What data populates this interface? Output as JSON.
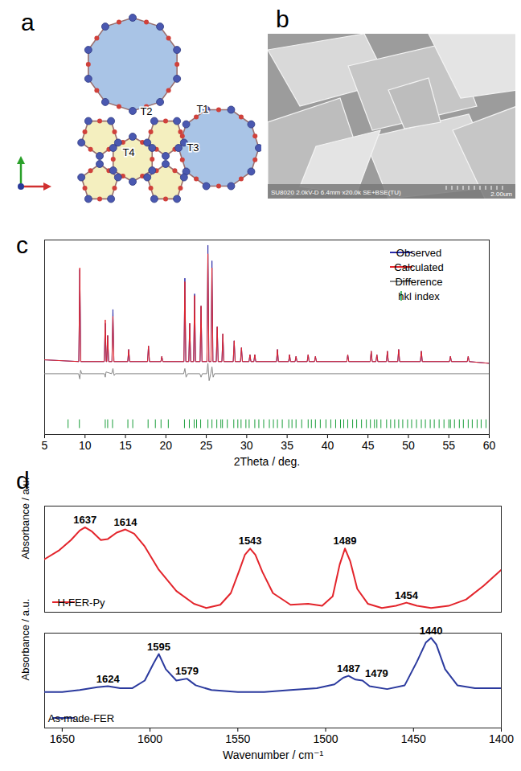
{
  "diagram": {
    "panel": "a",
    "labels": [
      "T2",
      "T1",
      "T3",
      "T4"
    ]
  },
  "image": {
    "panel": "b",
    "info": "SU8020 2.0kV-D 6.4mm x20.0k SE+BSE(TU)",
    "scale_bar": "2.00um"
  },
  "chart_data": [
    {
      "panel": "c",
      "type": "line",
      "x_label": "2Theta / deg.",
      "xlim": [
        5,
        60
      ],
      "xticks": [
        5,
        10,
        15,
        20,
        25,
        30,
        35,
        40,
        45,
        50,
        55,
        60
      ],
      "ylim": [
        0,
        112
      ],
      "tick_labels": "x",
      "legend": "top-right",
      "series": [
        {
          "name": "Observed",
          "color": "#2a2aa8",
          "x": [
            5,
            9.23,
            9.35,
            9.47,
            12.38,
            12.5,
            12.62,
            12.68,
            12.8,
            12.92,
            13.33,
            13.45,
            13.57,
            15.28,
            15.4,
            15.52,
            17.73,
            17.85,
            17.97,
            19.38,
            19.5,
            19.62,
            22.23,
            22.35,
            22.47,
            22.83,
            22.95,
            23.07,
            23.43,
            23.55,
            23.67,
            24.23,
            24.35,
            24.47,
            25.08,
            25.2,
            25.32,
            25.58,
            25.7,
            25.82,
            26.23,
            26.35,
            26.47,
            26.93,
            27.05,
            27.17,
            28.33,
            28.45,
            28.57,
            29.23,
            29.35,
            29.47,
            30.28,
            30.4,
            30.52,
            30.88,
            31.0,
            31.12,
            33.68,
            33.8,
            33.92,
            35.18,
            35.3,
            35.42,
            35.98,
            36.1,
            36.22,
            37.48,
            37.6,
            37.72,
            38.38,
            38.5,
            38.62,
            42.38,
            42.5,
            42.62,
            45.28,
            45.4,
            45.52,
            45.98,
            46.1,
            46.22,
            47.28,
            47.4,
            47.52,
            48.68,
            48.8,
            48.92,
            51.48,
            51.6,
            51.72,
            55.08,
            55.2,
            55.32,
            57.28,
            57.4,
            57.52,
            60
          ],
          "values": [
            43,
            42,
            95,
            42,
            42,
            64,
            42,
            42,
            57,
            42,
            42,
            72,
            42,
            42,
            49,
            42,
            42,
            51,
            42,
            42,
            45,
            42,
            42,
            90,
            42,
            42,
            64,
            42,
            42,
            81,
            42,
            42,
            74,
            42,
            42,
            109,
            42,
            42,
            100,
            42,
            42,
            62,
            42,
            42,
            58,
            42,
            42,
            54,
            42,
            42,
            50,
            42,
            42,
            46,
            42,
            42,
            46,
            42,
            42,
            49,
            42,
            42,
            46,
            42,
            42,
            45,
            42,
            42,
            46,
            42,
            42,
            45,
            42,
            42,
            46,
            42,
            42,
            48,
            42,
            42,
            46,
            42,
            42,
            48,
            42,
            42,
            49,
            42,
            42,
            48,
            42,
            42,
            45,
            42,
            42,
            45,
            42,
            41
          ]
        },
        {
          "name": "Calculated",
          "color": "#e3242b",
          "x": [
            5,
            9.23,
            9.35,
            9.47,
            12.38,
            12.5,
            12.62,
            12.68,
            12.8,
            12.92,
            13.33,
            13.45,
            13.57,
            15.28,
            15.4,
            15.52,
            17.73,
            17.85,
            17.97,
            19.38,
            19.5,
            19.62,
            22.23,
            22.35,
            22.47,
            22.83,
            22.95,
            23.07,
            23.43,
            23.55,
            23.67,
            24.23,
            24.35,
            24.47,
            25.08,
            25.2,
            25.32,
            25.58,
            25.7,
            25.82,
            26.23,
            26.35,
            26.47,
            26.93,
            27.05,
            27.17,
            28.33,
            28.45,
            28.57,
            29.23,
            29.35,
            29.47,
            30.28,
            30.4,
            30.52,
            30.88,
            31.0,
            31.12,
            33.68,
            33.8,
            33.92,
            35.18,
            35.3,
            35.42,
            35.98,
            36.1,
            36.22,
            37.48,
            37.6,
            37.72,
            38.38,
            38.5,
            38.62,
            42.38,
            42.5,
            42.62,
            45.28,
            45.4,
            45.52,
            45.98,
            46.1,
            46.22,
            47.28,
            47.4,
            47.52,
            48.68,
            48.8,
            48.92,
            51.48,
            51.6,
            51.72,
            55.08,
            55.2,
            55.32,
            57.28,
            57.4,
            57.52,
            60
          ],
          "values": [
            43,
            42,
            96,
            42,
            42,
            66,
            42,
            42,
            57,
            42,
            42,
            68,
            42,
            42,
            49,
            42,
            42,
            51,
            42,
            42,
            45,
            42,
            42,
            88,
            42,
            42,
            64,
            42,
            42,
            80,
            42,
            42,
            74,
            42,
            42,
            104,
            42,
            42,
            96,
            42,
            42,
            62,
            42,
            42,
            58,
            42,
            42,
            54,
            42,
            42,
            50,
            42,
            42,
            46,
            42,
            42,
            46,
            42,
            42,
            49,
            42,
            42,
            46,
            42,
            42,
            45,
            42,
            42,
            46,
            42,
            42,
            45,
            42,
            42,
            46,
            42,
            42,
            48,
            42,
            42,
            46,
            42,
            42,
            48,
            42,
            42,
            49,
            42,
            42,
            48,
            42,
            42,
            45,
            42,
            42,
            45,
            42,
            41
          ]
        },
        {
          "name": "Difference",
          "color": "#888888",
          "x": [
            5,
            9.2,
            9.35,
            9.45,
            9.6,
            12.4,
            12.5,
            12.6,
            13.3,
            13.45,
            13.6,
            13.75,
            22.2,
            22.35,
            22.5,
            22.7,
            24.2,
            24.35,
            24.5,
            25.05,
            25.2,
            25.35,
            25.55,
            25.7,
            25.85,
            26.0,
            60
          ],
          "values": [
            35,
            35,
            32,
            37,
            35,
            35,
            33,
            36,
            35,
            38,
            34,
            35,
            35,
            38,
            33,
            35,
            35,
            33,
            35,
            35,
            41,
            31,
            35,
            39,
            33,
            35,
            35
          ]
        },
        {
          "name": "hkl index",
          "color": "#1a9e3a",
          "type": "tick",
          "x": [
            7.9,
            9.3,
            12.5,
            12.8,
            13.4,
            15.3,
            15.9,
            17.8,
            18.7,
            19.4,
            20.3,
            22.3,
            22.9,
            23.5,
            23.8,
            24.3,
            25.2,
            25.7,
            26.3,
            26.8,
            27.0,
            27.6,
            28.4,
            28.9,
            29.3,
            29.9,
            30.3,
            31.0,
            31.5,
            32.1,
            32.8,
            33.3,
            33.8,
            34.4,
            35.2,
            35.6,
            36.1,
            36.8,
            37.6,
            38.0,
            38.5,
            39.1,
            39.8,
            40.4,
            41.0,
            41.6,
            42.0,
            42.5,
            43.1,
            43.6,
            44.2,
            44.8,
            45.3,
            45.8,
            46.1,
            46.6,
            47.3,
            47.8,
            48.3,
            48.8,
            49.3,
            49.9,
            50.4,
            51.0,
            51.6,
            52.1,
            52.7,
            53.2,
            53.8,
            54.4,
            55.0,
            55.2,
            55.7,
            56.3,
            56.8,
            57.4,
            57.9,
            58.5,
            59.0,
            59.6
          ],
          "values": [
            6,
            6,
            6,
            6,
            6,
            6,
            6,
            6,
            6,
            6,
            6,
            6,
            6,
            6,
            6,
            6,
            6,
            6,
            6,
            6,
            6,
            6,
            6,
            6,
            6,
            6,
            6,
            6,
            6,
            6,
            6,
            6,
            6,
            6,
            6,
            6,
            6,
            6,
            6,
            6,
            6,
            6,
            6,
            6,
            6,
            6,
            6,
            6,
            6,
            6,
            6,
            6,
            6,
            6,
            6,
            6,
            6,
            6,
            6,
            6,
            6,
            6,
            6,
            6,
            6,
            6,
            6,
            6,
            6,
            6,
            6,
            6,
            6,
            6,
            6,
            6,
            6,
            6,
            6,
            6
          ]
        }
      ]
    },
    {
      "panel": "d",
      "type": "line",
      "y_label": "Absorbance / a.u.",
      "xlim": [
        1660,
        1400
      ],
      "ylim": [
        0,
        100
      ],
      "tick_labels": false,
      "legend": "bottom-left",
      "series": [
        {
          "name": "H-FER-Py",
          "color": "#e3242b",
          "x": [
            1660,
            1652,
            1645,
            1640,
            1637,
            1633,
            1628,
            1624,
            1619,
            1614,
            1609,
            1603,
            1595,
            1585,
            1575,
            1568,
            1560,
            1554,
            1549,
            1546,
            1543,
            1540,
            1536,
            1530,
            1520,
            1510,
            1502,
            1496,
            1492,
            1489,
            1486,
            1482,
            1476,
            1468,
            1460,
            1454,
            1448,
            1440,
            1430,
            1420,
            1410,
            1400
          ],
          "values": [
            50,
            58,
            68,
            77,
            80,
            76,
            68,
            69,
            75,
            78,
            74,
            62,
            40,
            20,
            8,
            4,
            7,
            18,
            40,
            54,
            60,
            54,
            38,
            18,
            7,
            8,
            6,
            15,
            45,
            60,
            48,
            22,
            8,
            4,
            6,
            9,
            6,
            4,
            6,
            12,
            25,
            40
          ]
        }
      ],
      "annotations": [
        {
          "text": "1637",
          "x": 1637
        },
        {
          "text": "1614",
          "x": 1614
        },
        {
          "text": "1543",
          "x": 1543
        },
        {
          "text": "1489",
          "x": 1489
        },
        {
          "text": "1454",
          "x": 1454
        }
      ]
    },
    {
      "type": "line",
      "y_label": "Absorbance / a.u.",
      "x_label": "Wavenumber / cm⁻¹",
      "xlim": [
        1660,
        1400
      ],
      "xticks": [
        1650,
        1600,
        1550,
        1500,
        1450,
        1400
      ],
      "ylim": [
        0,
        100
      ],
      "tick_labels": "x",
      "legend": "bottom-left",
      "series": [
        {
          "name": "As-made-FER",
          "color": "#2b3a9e",
          "x": [
            1660,
            1650,
            1640,
            1630,
            1624,
            1617,
            1610,
            1603,
            1598,
            1595,
            1591,
            1585,
            1579,
            1574,
            1565,
            1550,
            1535,
            1520,
            1505,
            1495,
            1490,
            1487,
            1483,
            1479,
            1475,
            1465,
            1455,
            1448,
            1443,
            1440,
            1437,
            1432,
            1425,
            1415,
            1400
          ],
          "values": [
            38,
            38,
            40,
            43,
            44,
            42,
            42,
            50,
            68,
            78,
            62,
            50,
            52,
            45,
            40,
            38,
            38,
            40,
            42,
            46,
            53,
            55,
            51,
            50,
            44,
            41,
            45,
            70,
            90,
            95,
            88,
            62,
            45,
            42,
            42
          ]
        }
      ],
      "annotations": [
        {
          "text": "1624",
          "x": 1624
        },
        {
          "text": "1595",
          "x": 1595
        },
        {
          "text": "1579",
          "x": 1579
        },
        {
          "text": "1487",
          "x": 1487
        },
        {
          "text": "1479",
          "x": 1479
        },
        {
          "text": "1440",
          "x": 1440
        }
      ]
    }
  ]
}
